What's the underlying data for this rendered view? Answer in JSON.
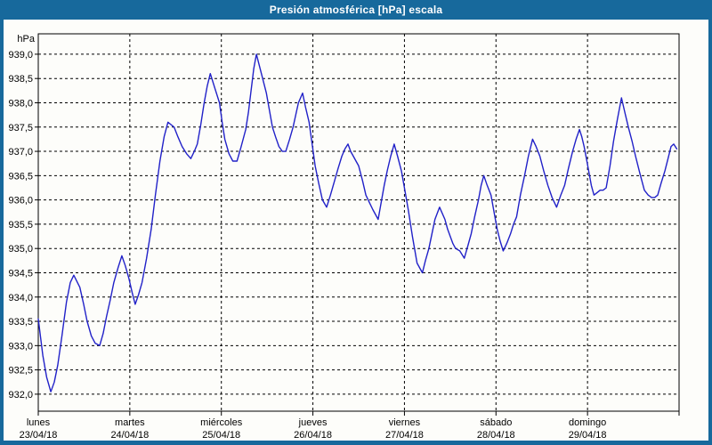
{
  "title": "Presión atmosférica [hPa] escala",
  "colors": {
    "frame": "#17699c",
    "title_text": "#ffffff",
    "plot_background": "#fdfdfa",
    "grid": "#000000",
    "axis": "#000000",
    "line": "#2121c8",
    "label_text": "#000000"
  },
  "chart_data": {
    "type": "line",
    "title": "Presión atmosférica [hPa] escala",
    "ylabel": "hPa",
    "ylim": [
      932.0,
      939.0
    ],
    "ylim_render": [
      931.65,
      939.42
    ],
    "y_step": 0.5,
    "y_ticks": [
      [
        939.0,
        "939,0"
      ],
      [
        938.5,
        "938,5"
      ],
      [
        938.0,
        "938,0"
      ],
      [
        937.5,
        "937,5"
      ],
      [
        937.0,
        "937,0"
      ],
      [
        936.5,
        "936,5"
      ],
      [
        936.0,
        "936,0"
      ],
      [
        935.5,
        "935,5"
      ],
      [
        935.0,
        "935,0"
      ],
      [
        934.5,
        "934,5"
      ],
      [
        934.0,
        "934,0"
      ],
      [
        933.5,
        "933,5"
      ],
      [
        933.0,
        "933,0"
      ],
      [
        932.5,
        "932,5"
      ],
      [
        932.0,
        "932,0"
      ]
    ],
    "x_range_hours": [
      0,
      168
    ],
    "day_width_hours": 24,
    "grid": "dashed",
    "legend": "none",
    "days": [
      {
        "name": "lunes",
        "date": "23/04/18"
      },
      {
        "name": "martes",
        "date": "24/04/18"
      },
      {
        "name": "miércoles",
        "date": "25/04/18"
      },
      {
        "name": "jueves",
        "date": "26/04/18"
      },
      {
        "name": "viernes",
        "date": "27/04/18"
      },
      {
        "name": "sábado",
        "date": "28/04/18"
      },
      {
        "name": "domingo",
        "date": "29/04/18"
      }
    ],
    "series": [
      {
        "name": "presion_atmosferica",
        "color": "#2121c8",
        "points": [
          [
            0,
            933.55
          ],
          [
            1.2,
            932.8
          ],
          [
            2.2,
            932.35
          ],
          [
            3.3,
            932.05
          ],
          [
            4.2,
            932.25
          ],
          [
            5.1,
            932.6
          ],
          [
            6.2,
            933.2
          ],
          [
            7.4,
            933.9
          ],
          [
            8.4,
            934.3
          ],
          [
            9.3,
            934.45
          ],
          [
            10.9,
            934.2
          ],
          [
            11.9,
            933.85
          ],
          [
            12.8,
            933.5
          ],
          [
            13.9,
            933.2
          ],
          [
            14.9,
            933.05
          ],
          [
            16.1,
            933.0
          ],
          [
            17,
            933.25
          ],
          [
            17.9,
            933.6
          ],
          [
            18.9,
            933.95
          ],
          [
            19.8,
            934.3
          ],
          [
            20.9,
            934.6
          ],
          [
            21.9,
            934.85
          ],
          [
            22.8,
            934.65
          ],
          [
            23.7,
            934.4
          ],
          [
            24.6,
            934.1
          ],
          [
            25.4,
            933.85
          ],
          [
            26.3,
            934.05
          ],
          [
            27.2,
            934.3
          ],
          [
            28.4,
            934.8
          ],
          [
            29.6,
            935.4
          ],
          [
            30.7,
            936.1
          ],
          [
            31.9,
            936.8
          ],
          [
            33,
            937.3
          ],
          [
            34,
            937.6
          ],
          [
            34.8,
            937.55
          ],
          [
            35.6,
            937.5
          ],
          [
            36.6,
            937.3
          ],
          [
            37.7,
            937.1
          ],
          [
            38.9,
            936.95
          ],
          [
            40,
            936.85
          ],
          [
            40.9,
            937.0
          ],
          [
            41.7,
            937.15
          ],
          [
            42.6,
            937.55
          ],
          [
            43.5,
            938.0
          ],
          [
            44.3,
            938.35
          ],
          [
            45.1,
            938.6
          ],
          [
            46.3,
            938.3
          ],
          [
            47.5,
            938.0
          ],
          [
            48.2,
            937.6
          ],
          [
            48.9,
            937.25
          ],
          [
            50,
            936.95
          ],
          [
            51,
            936.8
          ],
          [
            52.1,
            936.8
          ],
          [
            53.2,
            937.1
          ],
          [
            54.4,
            937.45
          ],
          [
            55.1,
            937.8
          ],
          [
            55.8,
            938.25
          ],
          [
            56.5,
            938.7
          ],
          [
            57.2,
            939.0
          ],
          [
            58.5,
            938.6
          ],
          [
            59.8,
            938.2
          ],
          [
            60.6,
            937.85
          ],
          [
            61.4,
            937.5
          ],
          [
            62.2,
            937.3
          ],
          [
            63.1,
            937.1
          ],
          [
            64,
            937.0
          ],
          [
            64.9,
            937.0
          ],
          [
            65.9,
            937.25
          ],
          [
            66.8,
            937.5
          ],
          [
            67.5,
            937.75
          ],
          [
            68.2,
            938.0
          ],
          [
            69.3,
            938.2
          ],
          [
            70.1,
            937.9
          ],
          [
            71,
            937.6
          ],
          [
            71.8,
            937.15
          ],
          [
            72.6,
            936.7
          ],
          [
            73.5,
            936.35
          ],
          [
            74.5,
            936.0
          ],
          [
            75.6,
            935.85
          ],
          [
            76.6,
            936.1
          ],
          [
            77.7,
            936.4
          ],
          [
            78.6,
            936.65
          ],
          [
            79.6,
            936.9
          ],
          [
            80.4,
            937.05
          ],
          [
            81.2,
            937.15
          ],
          [
            81.9,
            937.0
          ],
          [
            82.6,
            936.9
          ],
          [
            83.3,
            936.8
          ],
          [
            84,
            936.7
          ],
          [
            85,
            936.4
          ],
          [
            85.9,
            936.1
          ],
          [
            86.8,
            935.95
          ],
          [
            87.7,
            935.8
          ],
          [
            88.4,
            935.7
          ],
          [
            89.1,
            935.6
          ],
          [
            89.9,
            935.95
          ],
          [
            90.7,
            936.3
          ],
          [
            91.5,
            936.6
          ],
          [
            92.4,
            936.9
          ],
          [
            93.3,
            937.15
          ],
          [
            94.2,
            936.9
          ],
          [
            95.2,
            936.6
          ],
          [
            96.1,
            936.2
          ],
          [
            97,
            935.8
          ],
          [
            98.1,
            935.25
          ],
          [
            99.3,
            934.7
          ],
          [
            100.7,
            934.5
          ],
          [
            101.5,
            934.75
          ],
          [
            102.4,
            935.0
          ],
          [
            103.2,
            935.3
          ],
          [
            104,
            935.6
          ],
          [
            105.2,
            935.85
          ],
          [
            106.6,
            935.6
          ],
          [
            107.3,
            935.4
          ],
          [
            108,
            935.25
          ],
          [
            108.7,
            935.1
          ],
          [
            109.4,
            935.0
          ],
          [
            110.5,
            934.95
          ],
          [
            111.7,
            934.8
          ],
          [
            112.6,
            935.05
          ],
          [
            113.5,
            935.3
          ],
          [
            114.4,
            935.65
          ],
          [
            115.4,
            936.0
          ],
          [
            116.1,
            936.3
          ],
          [
            116.8,
            936.5
          ],
          [
            117.7,
            936.3
          ],
          [
            118.7,
            936.1
          ],
          [
            119.5,
            935.75
          ],
          [
            120.3,
            935.4
          ],
          [
            121.1,
            935.15
          ],
          [
            121.9,
            934.95
          ],
          [
            122.8,
            935.1
          ],
          [
            123.8,
            935.3
          ],
          [
            124.6,
            935.5
          ],
          [
            125.4,
            935.65
          ],
          [
            126.4,
            936.1
          ],
          [
            127.5,
            936.5
          ],
          [
            128.5,
            936.9
          ],
          [
            129.6,
            937.25
          ],
          [
            130.5,
            937.1
          ],
          [
            131.5,
            936.9
          ],
          [
            132.5,
            936.6
          ],
          [
            133.6,
            936.3
          ],
          [
            134.7,
            936.05
          ],
          [
            135.9,
            935.85
          ],
          [
            137,
            936.1
          ],
          [
            138,
            936.3
          ],
          [
            139,
            936.65
          ],
          [
            140.1,
            937.0
          ],
          [
            141,
            937.25
          ],
          [
            141.9,
            937.45
          ],
          [
            142.5,
            937.3
          ],
          [
            143.1,
            937.1
          ],
          [
            143.7,
            936.85
          ],
          [
            144.3,
            936.6
          ],
          [
            145,
            936.3
          ],
          [
            145.7,
            936.1
          ],
          [
            146.5,
            936.15
          ],
          [
            147.3,
            936.2
          ],
          [
            148.1,
            936.2
          ],
          [
            148.9,
            936.25
          ],
          [
            149.9,
            936.7
          ],
          [
            150.8,
            937.2
          ],
          [
            151.8,
            937.65
          ],
          [
            152.9,
            938.1
          ],
          [
            153.8,
            937.8
          ],
          [
            154.7,
            937.5
          ],
          [
            155.7,
            937.2
          ],
          [
            156.6,
            936.9
          ],
          [
            157.7,
            936.55
          ],
          [
            158.9,
            936.2
          ],
          [
            159.9,
            936.1
          ],
          [
            160.8,
            936.05
          ],
          [
            161.6,
            936.05
          ],
          [
            162.4,
            936.1
          ],
          [
            163.3,
            936.35
          ],
          [
            164.3,
            936.6
          ],
          [
            165.1,
            936.85
          ],
          [
            165.9,
            937.1
          ],
          [
            166.6,
            937.15
          ],
          [
            167.4,
            937.05
          ]
        ]
      }
    ]
  }
}
